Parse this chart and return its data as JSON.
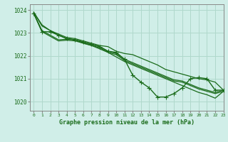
{
  "title": "Graphe pression niveau de la mer (hPa)",
  "background_color": "#d0eee8",
  "grid_color": "#b0d8cc",
  "line_color": "#1a6b1a",
  "spine_color": "#888888",
  "xlim": [
    -0.5,
    23
  ],
  "ylim": [
    1019.6,
    1024.25
  ],
  "yticks": [
    1020,
    1021,
    1022,
    1023,
    1024
  ],
  "xticks": [
    0,
    1,
    2,
    3,
    4,
    5,
    6,
    7,
    8,
    9,
    10,
    11,
    12,
    13,
    14,
    15,
    16,
    17,
    18,
    19,
    20,
    21,
    22,
    23
  ],
  "series": [
    {
      "x": [
        0,
        1,
        2,
        3,
        4,
        5,
        6,
        7,
        8,
        9,
        10,
        11,
        12,
        13,
        14,
        15,
        16,
        17,
        18,
        19,
        20,
        21,
        22,
        23
      ],
      "y": [
        1023.9,
        1023.3,
        1023.1,
        1022.9,
        1022.75,
        1022.7,
        1022.55,
        1022.45,
        1022.3,
        1022.15,
        1021.95,
        1021.75,
        1021.6,
        1021.45,
        1021.3,
        1021.15,
        1021.0,
        1020.85,
        1020.7,
        1020.55,
        1020.4,
        1020.3,
        1020.15,
        1020.45
      ],
      "marker": null,
      "lw": 0.9
    },
    {
      "x": [
        0,
        1,
        2,
        3,
        4,
        5,
        6,
        7,
        8,
        9,
        10,
        11,
        12,
        13,
        14,
        15,
        16,
        17,
        18,
        19,
        20,
        21,
        22,
        23
      ],
      "y": [
        1023.9,
        1023.35,
        1023.1,
        1022.95,
        1022.8,
        1022.75,
        1022.65,
        1022.55,
        1022.45,
        1022.4,
        1022.2,
        1022.1,
        1022.05,
        1021.9,
        1021.75,
        1021.6,
        1021.4,
        1021.3,
        1021.2,
        1021.1,
        1021.0,
        1020.95,
        1020.85,
        1020.5
      ],
      "marker": null,
      "lw": 0.9
    },
    {
      "x": [
        0,
        1,
        2,
        3,
        4,
        5,
        6,
        7,
        8,
        9,
        10,
        11,
        12,
        13,
        14,
        15,
        16,
        17,
        18,
        19,
        20,
        21,
        22,
        23
      ],
      "y": [
        1023.85,
        1023.1,
        1022.9,
        1022.7,
        1022.72,
        1022.7,
        1022.6,
        1022.5,
        1022.4,
        1022.2,
        1022.1,
        1021.85,
        1021.7,
        1021.55,
        1021.4,
        1021.25,
        1021.1,
        1020.95,
        1020.9,
        1020.75,
        1020.6,
        1020.5,
        1020.4,
        1020.5
      ],
      "marker": null,
      "lw": 0.9
    },
    {
      "x": [
        0,
        1,
        2,
        3,
        4,
        5,
        6,
        7,
        8,
        9,
        10,
        11,
        12,
        13,
        14,
        15,
        16,
        17,
        18,
        19,
        20,
        21,
        22,
        23
      ],
      "y": [
        1023.85,
        1023.05,
        1022.85,
        1022.65,
        1022.68,
        1022.65,
        1022.55,
        1022.45,
        1022.35,
        1022.15,
        1022.05,
        1021.8,
        1021.65,
        1021.5,
        1021.35,
        1021.2,
        1021.05,
        1020.9,
        1020.85,
        1020.7,
        1020.55,
        1020.45,
        1020.35,
        1020.45
      ],
      "marker": null,
      "lw": 0.9
    },
    {
      "x": [
        0,
        1,
        2,
        3,
        4,
        5,
        6,
        7,
        8,
        9,
        10,
        11,
        12,
        13,
        14,
        15,
        16,
        17,
        18,
        19,
        20,
        21,
        22,
        23
      ],
      "y": [
        1023.85,
        1023.05,
        1023.05,
        1022.9,
        1022.75,
        1022.7,
        1022.6,
        1022.5,
        1022.4,
        1022.2,
        1022.15,
        1021.85,
        1021.15,
        1020.85,
        1020.6,
        1020.2,
        1020.2,
        1020.35,
        1020.6,
        1021.0,
        1021.05,
        1021.0,
        1020.5,
        1020.5
      ],
      "marker": "+",
      "lw": 1.0
    }
  ]
}
